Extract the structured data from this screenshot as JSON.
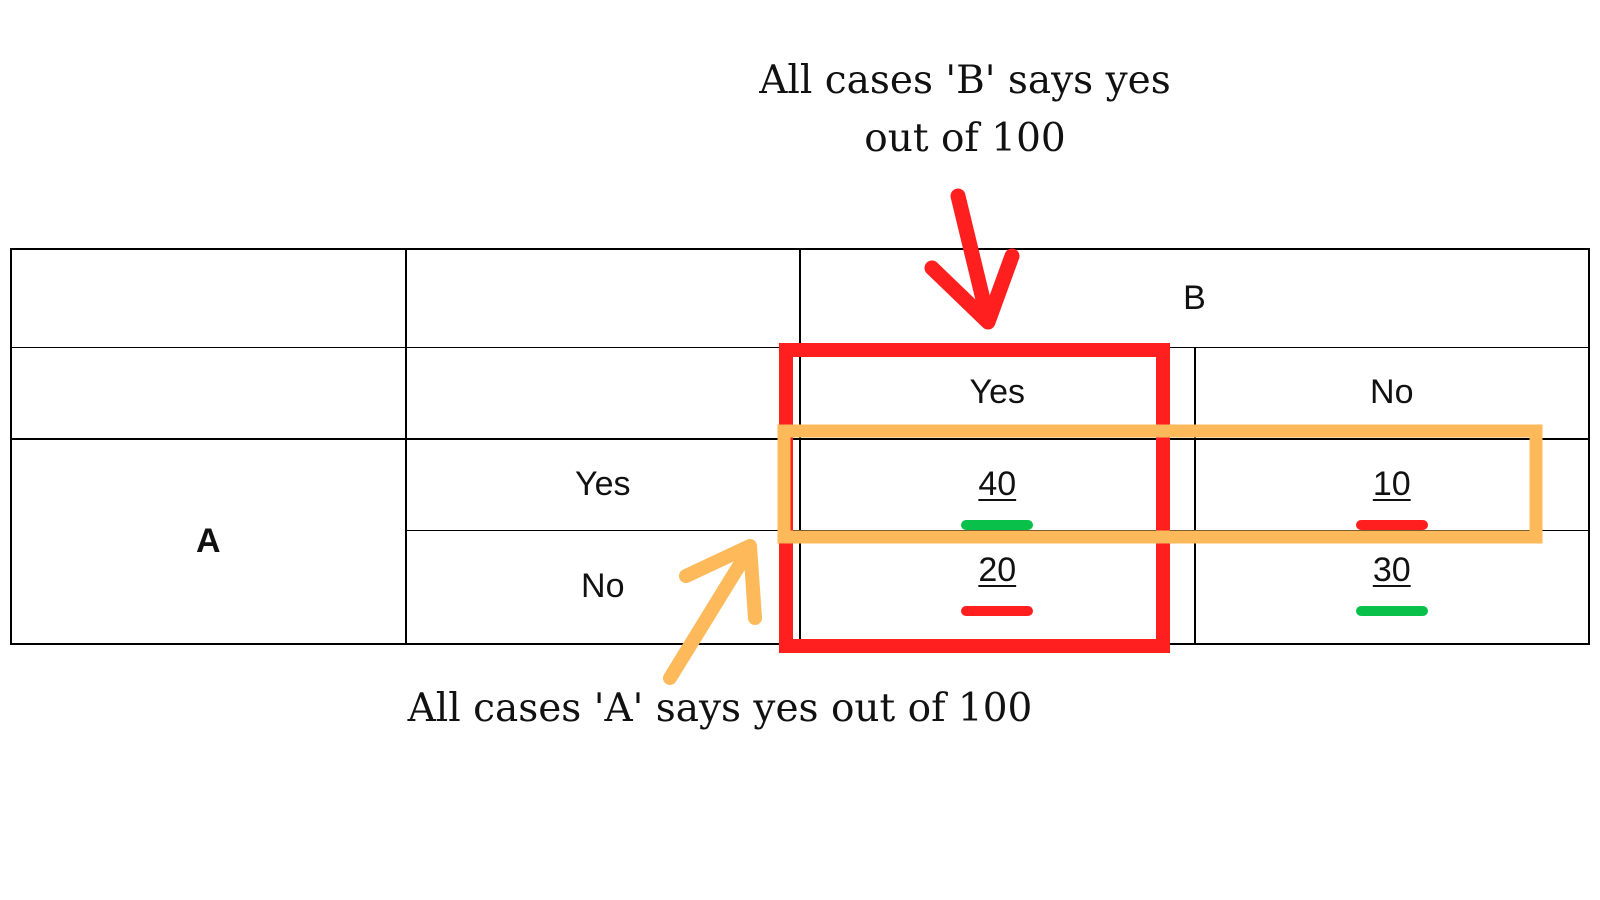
{
  "notes": {
    "b_line1": "All cases 'B' says yes",
    "b_line2": "out of 100",
    "a": "All cases 'A' says yes out of 100"
  },
  "table": {
    "b_label": "B",
    "a_label": "A",
    "col_yes": "Yes",
    "col_no": "No",
    "row_yes": "Yes",
    "row_no": "No",
    "cells": {
      "yes_yes": "40",
      "yes_no": "10",
      "no_yes": "20",
      "no_no": "30"
    }
  },
  "colors": {
    "red": "#ff1f1f",
    "orange": "#fdb95a",
    "green": "#08c04a",
    "grid": "#000000"
  }
}
